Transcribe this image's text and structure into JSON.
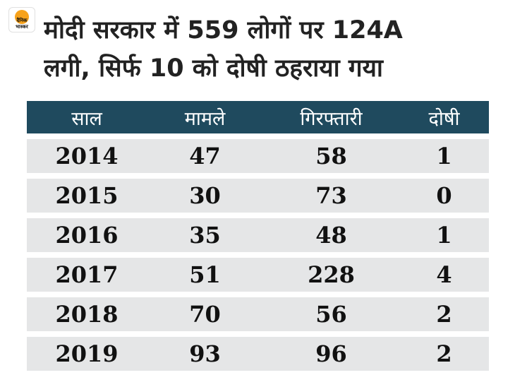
{
  "logo": {
    "line1": "दैनिक",
    "line2": "भास्कर",
    "accent_color": "#f7a21b"
  },
  "title": {
    "line1": "मोदी सरकार में 559 लोगों पर 124A",
    "line2": "लगी, सिर्फ 10 को दोषी ठहराया गया"
  },
  "colors": {
    "header_bg": "#1f4a5e",
    "row_bg": "#e5e6e7"
  },
  "chart_data": {
    "type": "table",
    "title": "मोदी सरकार में 559 लोगों पर 124A लगी, सिर्फ 10 को दोषी ठहराया गया",
    "columns": [
      "साल",
      "मामले",
      "गिरफ्तारी",
      "दोषी"
    ],
    "rows": [
      [
        "2014",
        "47",
        "58",
        "1"
      ],
      [
        "2015",
        "30",
        "73",
        "0"
      ],
      [
        "2016",
        "35",
        "48",
        "1"
      ],
      [
        "2017",
        "51",
        "228",
        "4"
      ],
      [
        "2018",
        "70",
        "56",
        "2"
      ],
      [
        "2019",
        "93",
        "96",
        "2"
      ]
    ]
  }
}
